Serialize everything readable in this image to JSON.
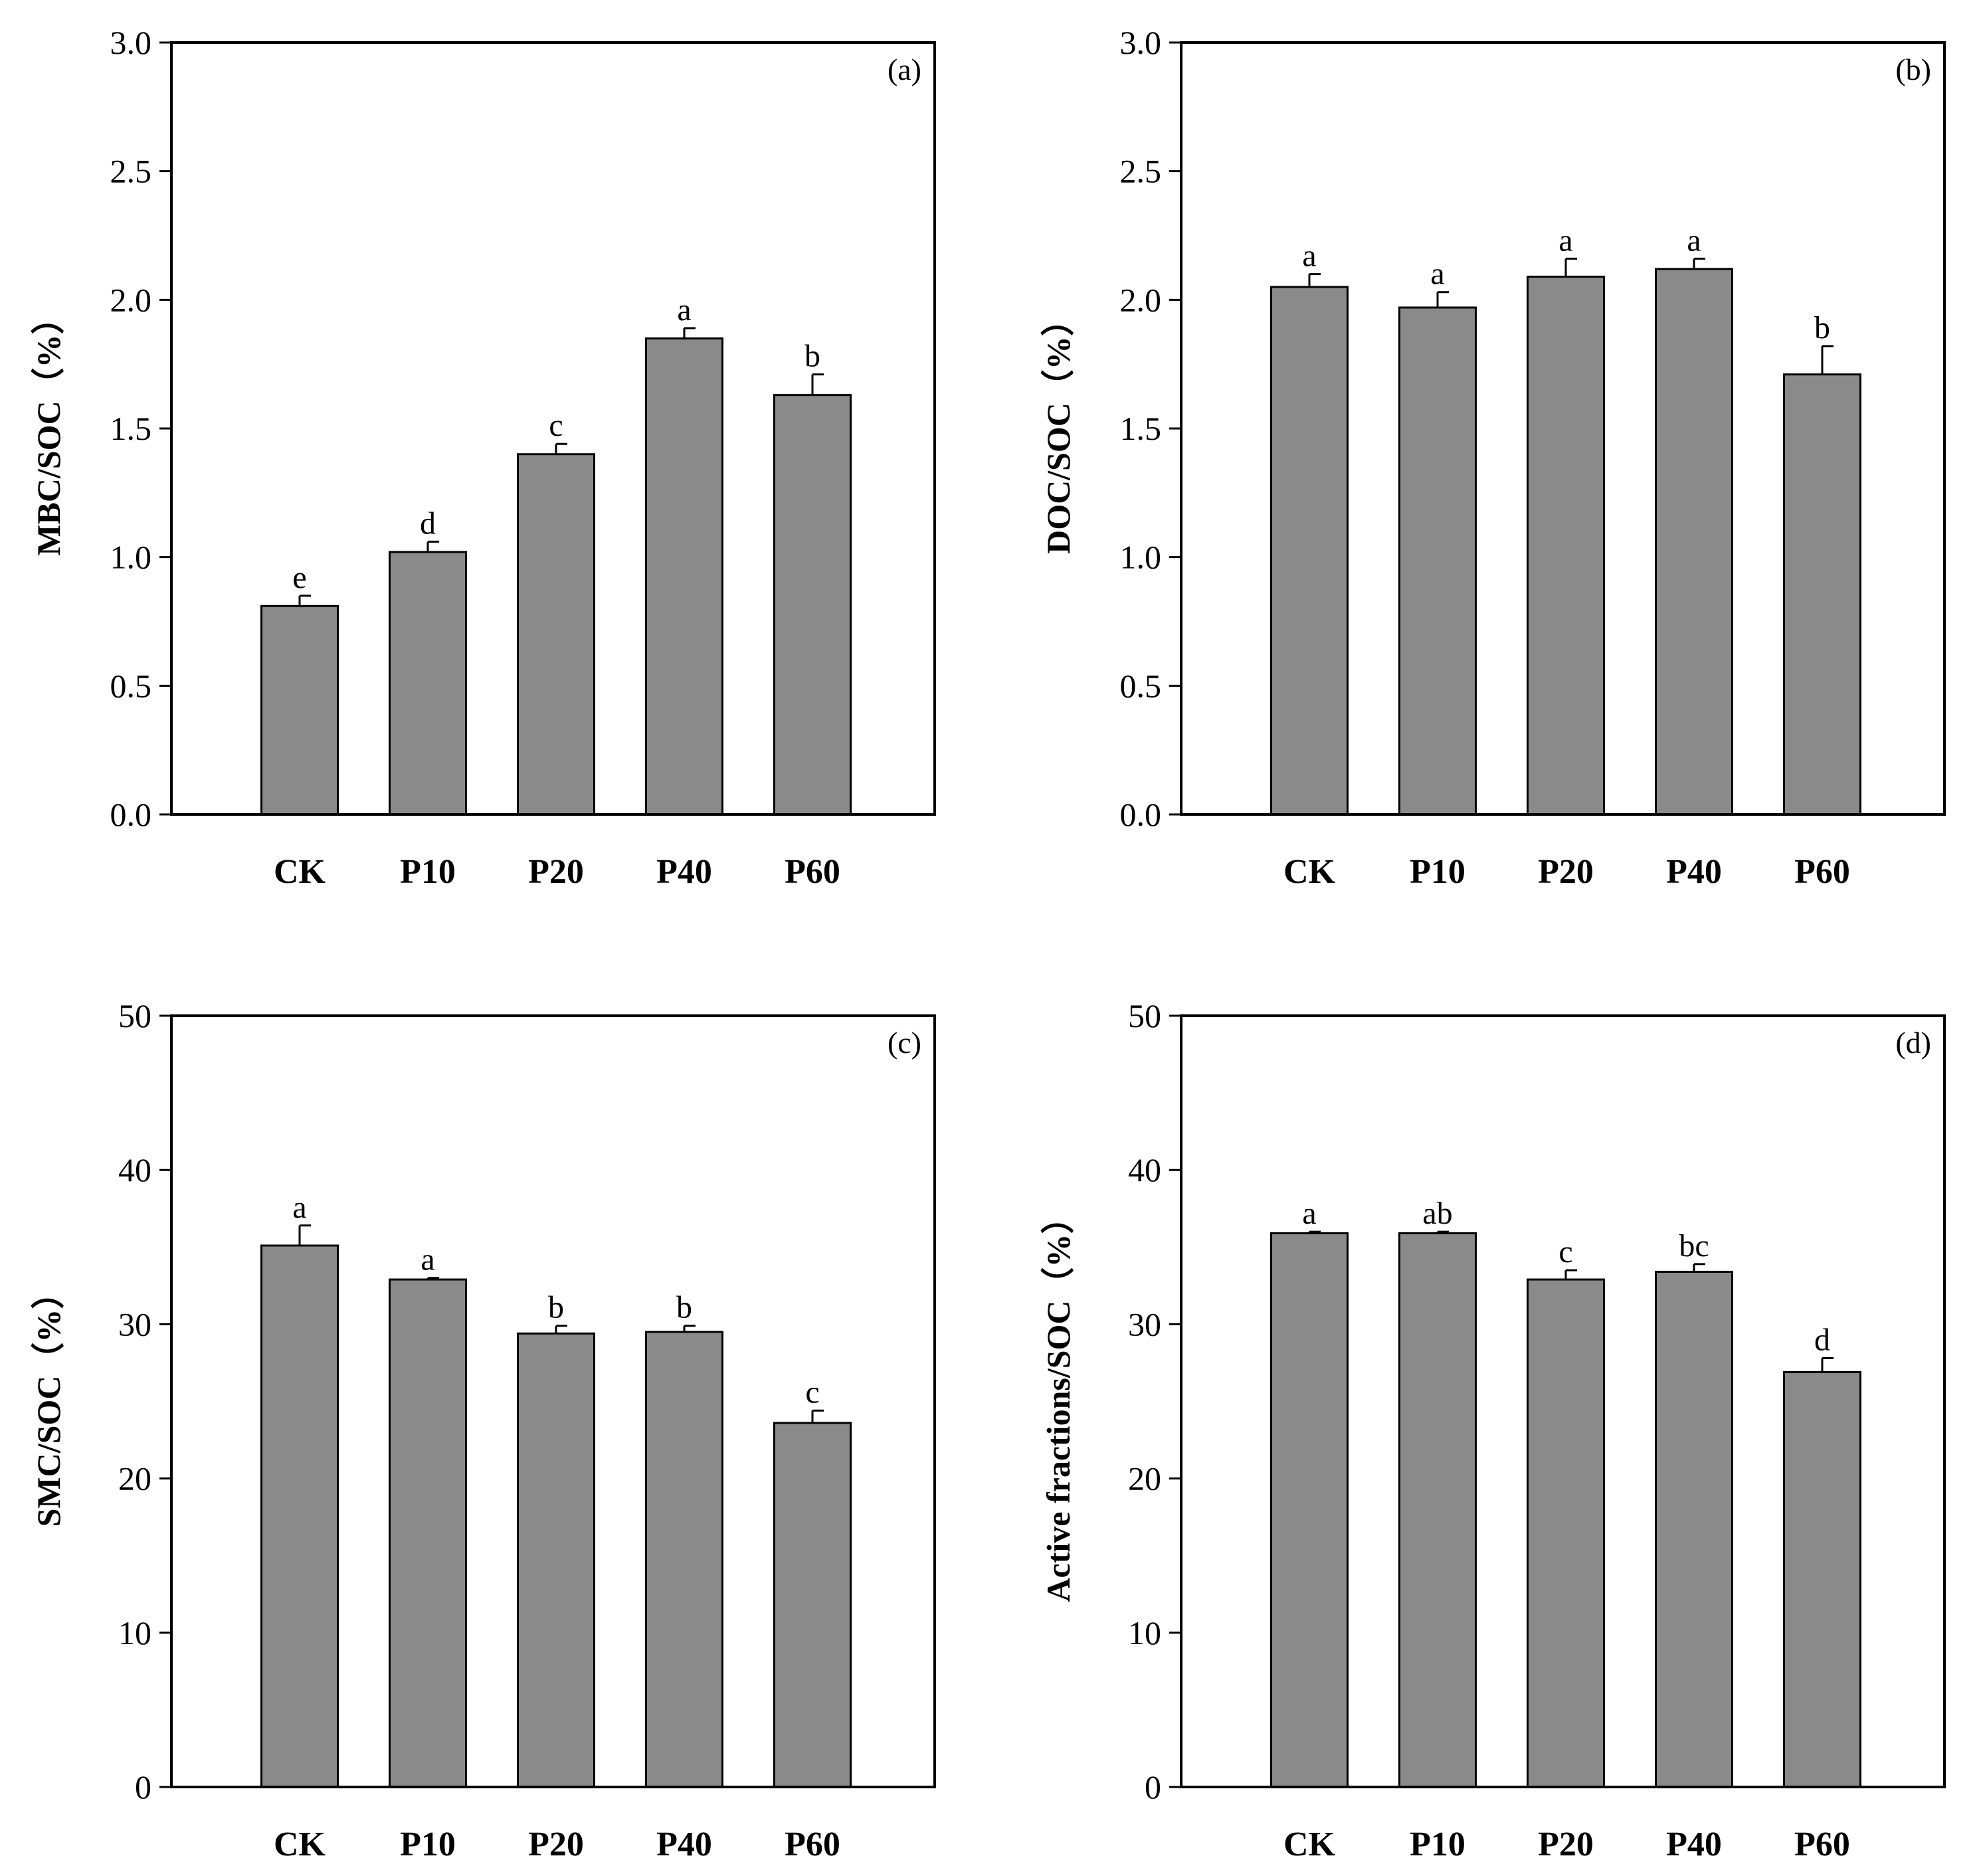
{
  "figure": {
    "bar_color": "#8a8a8a",
    "axis_color": "#000000"
  },
  "chart_data": [
    {
      "type": "bar",
      "panel_tag": "(a)",
      "ylabel": "MBC/SOC（%）",
      "categories": [
        "CK",
        "P10",
        "P20",
        "P40",
        "P60"
      ],
      "values": [
        0.81,
        1.02,
        1.4,
        1.85,
        1.63
      ],
      "errors": [
        0.04,
        0.04,
        0.04,
        0.04,
        0.08
      ],
      "significance": [
        "e",
        "d",
        "c",
        "a",
        "b"
      ],
      "ylim": [
        0,
        3.0
      ],
      "yticks": [
        "0.0",
        "0.5",
        "1.0",
        "1.5",
        "2.0",
        "2.5",
        "3.0"
      ],
      "grid": false
    },
    {
      "type": "bar",
      "panel_tag": "(b)",
      "ylabel": "DOC/SOC（%）",
      "categories": [
        "CK",
        "P10",
        "P20",
        "P40",
        "P60"
      ],
      "values": [
        2.05,
        1.97,
        2.09,
        2.12,
        1.71
      ],
      "errors": [
        0.05,
        0.06,
        0.07,
        0.04,
        0.11
      ],
      "significance": [
        "a",
        "a",
        "a",
        "a",
        "b"
      ],
      "ylim": [
        0,
        3.0
      ],
      "yticks": [
        "0.0",
        "0.5",
        "1.0",
        "1.5",
        "2.0",
        "2.5",
        "3.0"
      ],
      "grid": false
    },
    {
      "type": "bar",
      "panel_tag": "(c)",
      "ylabel": "SMC/SOC（%）",
      "categories": [
        "CK",
        "P10",
        "P20",
        "P40",
        "P60"
      ],
      "values": [
        35.1,
        32.9,
        29.4,
        29.5,
        23.6
      ],
      "errors": [
        1.3,
        0.1,
        0.5,
        0.4,
        0.8
      ],
      "significance": [
        "a",
        "a",
        "b",
        "b",
        "c"
      ],
      "ylim": [
        0,
        50
      ],
      "yticks": [
        "0",
        "10",
        "20",
        "30",
        "40",
        "50"
      ],
      "grid": false
    },
    {
      "type": "bar",
      "panel_tag": "(d)",
      "ylabel": "Active fractions/SOC（%）",
      "categories": [
        "CK",
        "P10",
        "P20",
        "P40",
        "P60"
      ],
      "values": [
        35.9,
        35.9,
        32.9,
        33.4,
        26.9
      ],
      "errors": [
        0.1,
        0.1,
        0.6,
        0.5,
        0.9
      ],
      "significance": [
        "a",
        "ab",
        "c",
        "bc",
        "d"
      ],
      "ylim": [
        0,
        50
      ],
      "yticks": [
        "0",
        "10",
        "20",
        "30",
        "40",
        "50"
      ],
      "grid": false
    }
  ]
}
